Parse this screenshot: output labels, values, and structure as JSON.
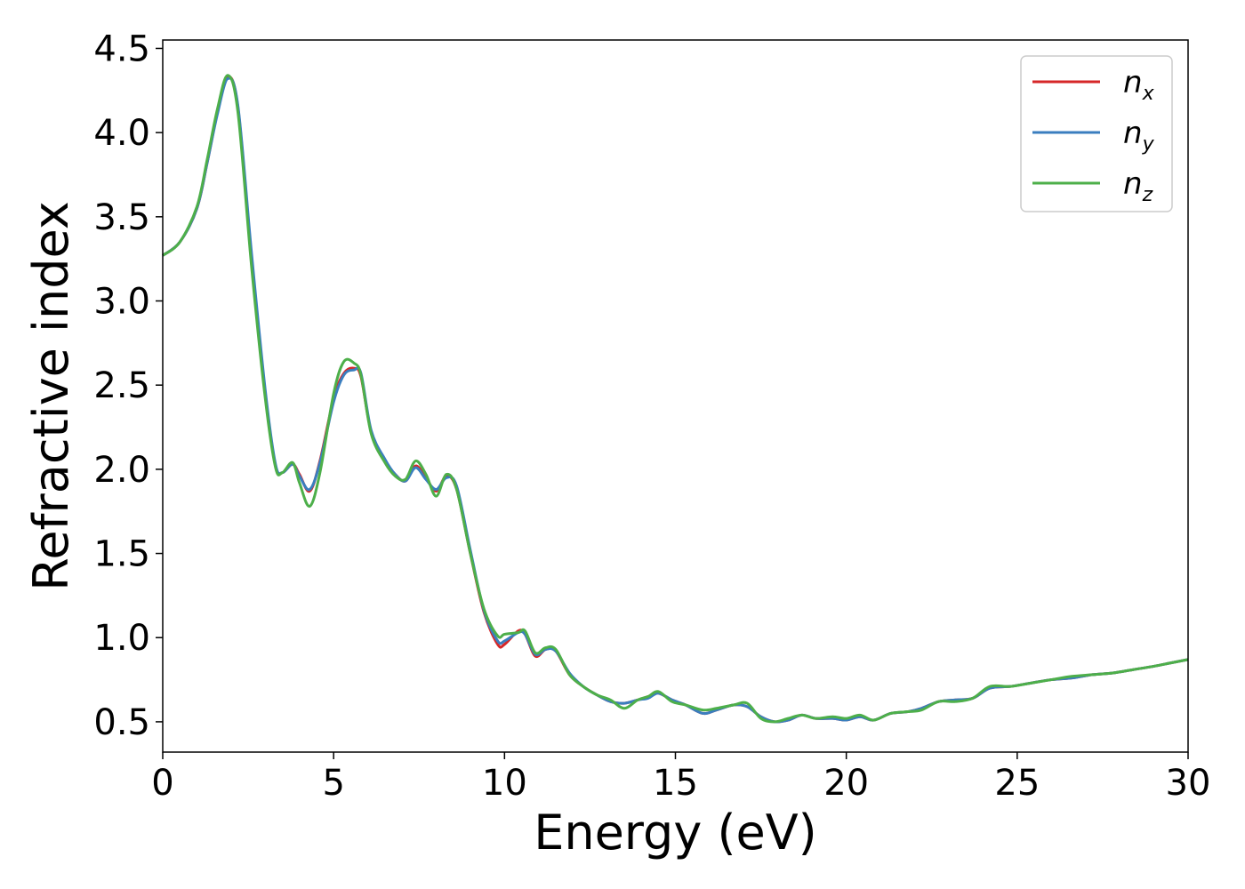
{
  "chart_data": {
    "type": "line",
    "xlabel": "Energy (eV)",
    "ylabel": "Refractive index",
    "xlim": [
      0,
      30
    ],
    "ylim": [
      0.32,
      4.55
    ],
    "xticks": [
      0,
      5,
      10,
      15,
      20,
      25,
      30
    ],
    "xtick_labels": [
      "0",
      "5",
      "10",
      "15",
      "20",
      "25",
      "30"
    ],
    "yticks": [
      0.5,
      1.0,
      1.5,
      2.0,
      2.5,
      3.0,
      3.5,
      4.0,
      4.5
    ],
    "ytick_labels": [
      "0.5",
      "1.0",
      "1.5",
      "2.0",
      "2.5",
      "3.0",
      "3.5",
      "4.0",
      "4.5"
    ],
    "grid": false,
    "legend": "top-right",
    "series": [
      {
        "name": "n",
        "subscript": "x",
        "color": "#d62728",
        "x": [
          0,
          0.5,
          1.0,
          1.3,
          1.6,
          1.9,
          2.2,
          2.6,
          3.0,
          3.3,
          3.5,
          3.8,
          4.0,
          4.3,
          4.6,
          5.0,
          5.3,
          5.6,
          5.8,
          6.1,
          6.5,
          6.8,
          7.1,
          7.4,
          7.7,
          8.0,
          8.3,
          8.6,
          9.0,
          9.4,
          9.8,
          10.0,
          10.4,
          10.6,
          10.9,
          11.2,
          11.5,
          11.9,
          12.3,
          12.7,
          13.1,
          13.5,
          13.9,
          14.2,
          14.5,
          14.9,
          15.3,
          15.8,
          16.2,
          16.7,
          17.1,
          17.5,
          17.9,
          18.3,
          18.7,
          19.1,
          19.6,
          20.0,
          20.4,
          20.8,
          21.3,
          21.8,
          22.2,
          22.7,
          23.2,
          23.7,
          24.2,
          24.8,
          25.4,
          26.0,
          26.6,
          27.2,
          27.8,
          28.4,
          29.0,
          29.5,
          30.0
        ],
        "y": [
          3.27,
          3.35,
          3.55,
          3.82,
          4.12,
          4.33,
          4.15,
          3.25,
          2.45,
          2.02,
          1.98,
          2.03,
          1.97,
          1.87,
          2.05,
          2.42,
          2.57,
          2.6,
          2.55,
          2.22,
          2.05,
          1.97,
          1.93,
          2.02,
          1.95,
          1.87,
          1.96,
          1.88,
          1.5,
          1.15,
          0.96,
          0.96,
          1.04,
          1.02,
          0.89,
          0.93,
          0.92,
          0.78,
          0.71,
          0.66,
          0.62,
          0.61,
          0.63,
          0.65,
          0.67,
          0.63,
          0.6,
          0.55,
          0.57,
          0.6,
          0.59,
          0.53,
          0.5,
          0.51,
          0.54,
          0.52,
          0.52,
          0.51,
          0.53,
          0.51,
          0.55,
          0.56,
          0.58,
          0.62,
          0.63,
          0.64,
          0.7,
          0.71,
          0.73,
          0.75,
          0.76,
          0.78,
          0.79,
          0.81,
          0.83,
          0.85,
          0.87
        ]
      },
      {
        "name": "n",
        "subscript": "y",
        "color": "#3a7ebf",
        "x": [
          0,
          0.5,
          1.0,
          1.3,
          1.6,
          1.9,
          2.2,
          2.6,
          3.0,
          3.3,
          3.5,
          3.8,
          4.0,
          4.3,
          4.6,
          5.0,
          5.3,
          5.6,
          5.8,
          6.1,
          6.5,
          6.8,
          7.1,
          7.4,
          7.7,
          8.0,
          8.3,
          8.6,
          9.0,
          9.4,
          9.8,
          10.0,
          10.4,
          10.6,
          10.9,
          11.2,
          11.5,
          11.9,
          12.3,
          12.7,
          13.1,
          13.5,
          13.9,
          14.2,
          14.5,
          14.9,
          15.3,
          15.8,
          16.2,
          16.7,
          17.1,
          17.5,
          17.9,
          18.3,
          18.7,
          19.1,
          19.6,
          20.0,
          20.4,
          20.8,
          21.3,
          21.8,
          22.2,
          22.7,
          23.2,
          23.7,
          24.2,
          24.8,
          25.4,
          26.0,
          26.6,
          27.2,
          27.8,
          28.4,
          29.0,
          29.5,
          30.0
        ],
        "y": [
          3.27,
          3.35,
          3.55,
          3.82,
          4.11,
          4.32,
          4.16,
          3.28,
          2.47,
          2.03,
          1.98,
          2.03,
          1.96,
          1.88,
          2.04,
          2.4,
          2.56,
          2.59,
          2.57,
          2.23,
          2.06,
          1.97,
          1.93,
          2.01,
          1.94,
          1.88,
          1.95,
          1.9,
          1.52,
          1.16,
          0.98,
          0.98,
          1.03,
          1.02,
          0.9,
          0.93,
          0.92,
          0.79,
          0.71,
          0.66,
          0.62,
          0.61,
          0.63,
          0.64,
          0.67,
          0.63,
          0.6,
          0.55,
          0.57,
          0.6,
          0.59,
          0.53,
          0.5,
          0.51,
          0.54,
          0.52,
          0.52,
          0.51,
          0.53,
          0.51,
          0.55,
          0.56,
          0.58,
          0.62,
          0.63,
          0.64,
          0.7,
          0.71,
          0.73,
          0.75,
          0.76,
          0.78,
          0.79,
          0.81,
          0.83,
          0.85,
          0.87
        ]
      },
      {
        "name": "n",
        "subscript": "z",
        "color": "#4daf4a",
        "x": [
          0,
          0.5,
          1.0,
          1.3,
          1.6,
          1.9,
          2.2,
          2.6,
          3.0,
          3.3,
          3.5,
          3.8,
          4.0,
          4.3,
          4.6,
          5.0,
          5.3,
          5.6,
          5.8,
          6.1,
          6.5,
          6.8,
          7.1,
          7.4,
          7.7,
          8.0,
          8.3,
          8.6,
          9.0,
          9.4,
          9.8,
          10.0,
          10.4,
          10.6,
          10.9,
          11.2,
          11.5,
          11.9,
          12.3,
          12.7,
          13.1,
          13.5,
          13.9,
          14.2,
          14.5,
          14.9,
          15.3,
          15.8,
          16.2,
          16.7,
          17.1,
          17.5,
          17.9,
          18.3,
          18.7,
          19.1,
          19.6,
          20.0,
          20.4,
          20.8,
          21.3,
          21.8,
          22.2,
          22.7,
          23.2,
          23.7,
          24.2,
          24.8,
          25.4,
          26.0,
          26.6,
          27.2,
          27.8,
          28.4,
          29.0,
          29.5,
          30.0
        ],
        "y": [
          3.27,
          3.35,
          3.56,
          3.84,
          4.14,
          4.34,
          4.12,
          3.2,
          2.42,
          2.01,
          1.98,
          2.04,
          1.92,
          1.78,
          1.98,
          2.45,
          2.64,
          2.63,
          2.56,
          2.21,
          2.04,
          1.96,
          1.94,
          2.05,
          1.97,
          1.84,
          1.97,
          1.88,
          1.5,
          1.17,
          1.01,
          1.02,
          1.03,
          1.04,
          0.91,
          0.94,
          0.93,
          0.78,
          0.71,
          0.66,
          0.63,
          0.58,
          0.63,
          0.65,
          0.68,
          0.62,
          0.6,
          0.57,
          0.58,
          0.6,
          0.61,
          0.52,
          0.5,
          0.52,
          0.54,
          0.52,
          0.53,
          0.52,
          0.54,
          0.51,
          0.55,
          0.56,
          0.57,
          0.62,
          0.62,
          0.64,
          0.71,
          0.71,
          0.73,
          0.75,
          0.77,
          0.78,
          0.79,
          0.81,
          0.83,
          0.85,
          0.87
        ]
      }
    ]
  }
}
